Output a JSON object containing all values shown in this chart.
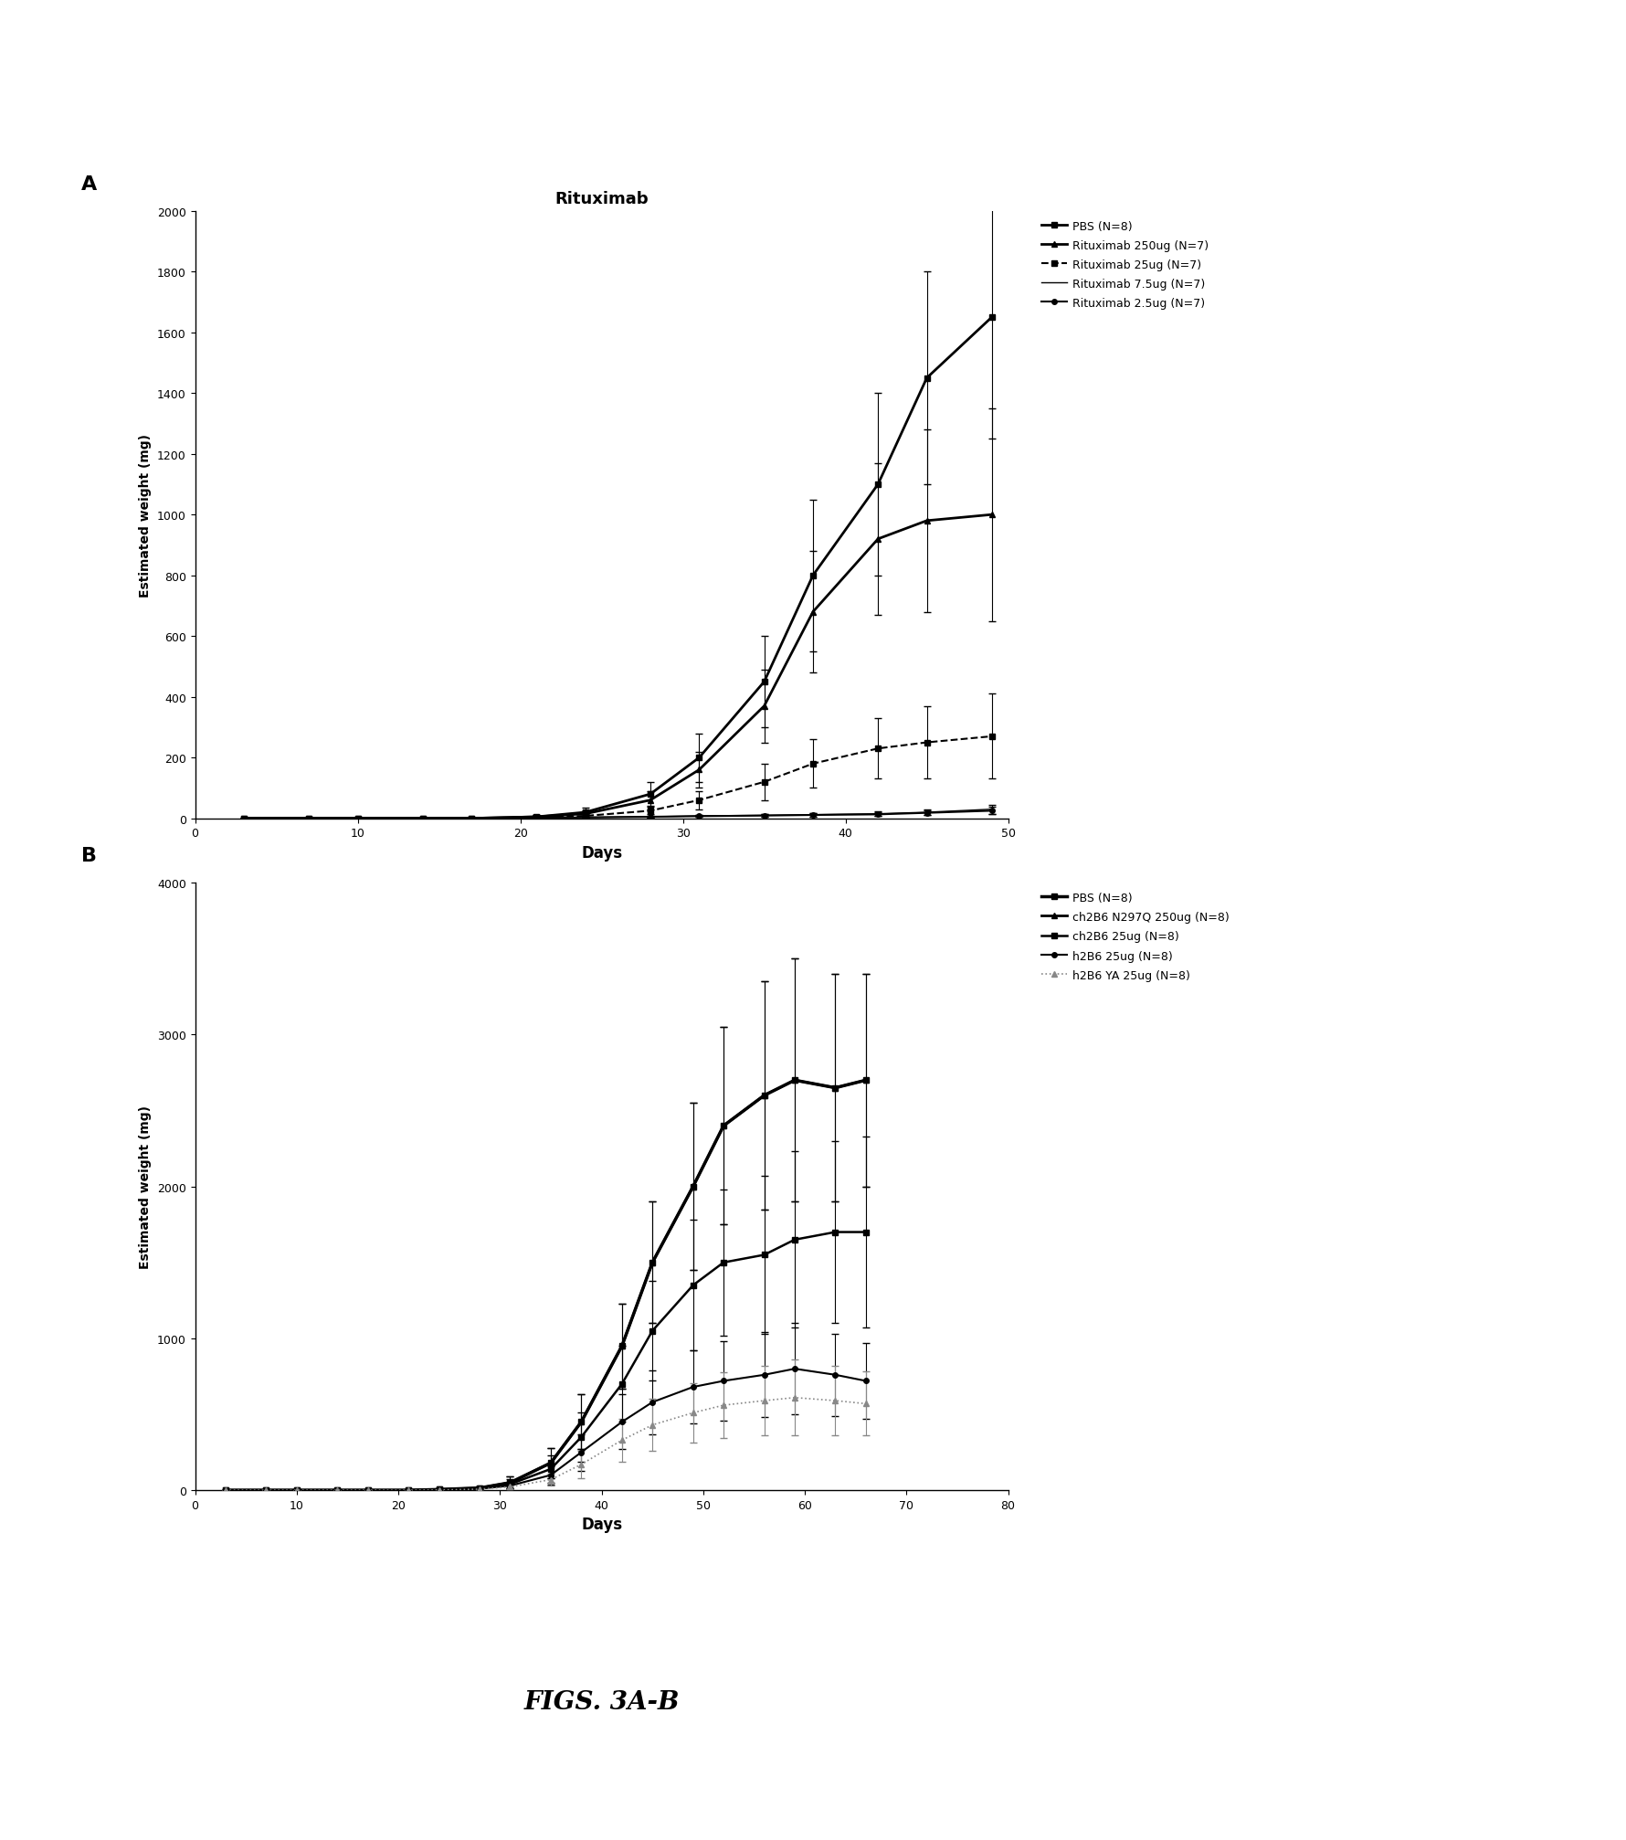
{
  "panel_A": {
    "title": "Rituximab",
    "xlabel": "Days",
    "ylabel": "Estimated weight (mg)",
    "xlim": [
      0,
      50
    ],
    "ylim": [
      0,
      2000
    ],
    "xticks": [
      0,
      10,
      20,
      30,
      40,
      50
    ],
    "yticks": [
      0,
      200,
      400,
      600,
      800,
      1000,
      1200,
      1400,
      1600,
      1800,
      2000
    ],
    "series": [
      {
        "label": "PBS (N=8)",
        "x": [
          3,
          7,
          10,
          14,
          17,
          21,
          24,
          28,
          31,
          35,
          38,
          42,
          45,
          49
        ],
        "y": [
          0,
          0,
          0,
          0,
          0,
          5,
          20,
          80,
          200,
          450,
          800,
          1100,
          1450,
          1650
        ],
        "yerr": [
          0,
          0,
          0,
          0,
          0,
          5,
          15,
          40,
          80,
          150,
          250,
          300,
          350,
          400
        ],
        "color": "#000000",
        "marker": "s",
        "linestyle": "-",
        "linewidth": 2.0,
        "markersize": 5
      },
      {
        "label": "Rituximab 250ug (N=7)",
        "x": [
          3,
          7,
          10,
          14,
          17,
          21,
          24,
          28,
          31,
          35,
          38,
          42,
          45,
          49
        ],
        "y": [
          0,
          0,
          0,
          0,
          0,
          5,
          15,
          60,
          160,
          370,
          680,
          920,
          980,
          1000
        ],
        "yerr": [
          0,
          0,
          0,
          0,
          0,
          5,
          10,
          30,
          60,
          120,
          200,
          250,
          300,
          350
        ],
        "color": "#000000",
        "marker": "^",
        "linestyle": "-",
        "linewidth": 2.0,
        "markersize": 5
      },
      {
        "label": "Rituximab 25ug (N=7)",
        "x": [
          3,
          7,
          10,
          14,
          17,
          21,
          24,
          28,
          31,
          35,
          38,
          42,
          45,
          49
        ],
        "y": [
          0,
          0,
          0,
          0,
          0,
          3,
          8,
          25,
          60,
          120,
          180,
          230,
          250,
          270
        ],
        "yerr": [
          0,
          0,
          0,
          0,
          0,
          2,
          5,
          12,
          30,
          60,
          80,
          100,
          120,
          140
        ],
        "color": "#000000",
        "marker": "s",
        "linestyle": "--",
        "linewidth": 1.5,
        "markersize": 4
      },
      {
        "label": "Rituximab 7.5ug (N=7)",
        "x": [
          3,
          7,
          10,
          14,
          17,
          21,
          24,
          28,
          31,
          35,
          38,
          42,
          45,
          49
        ],
        "y": [
          0,
          0,
          0,
          0,
          0,
          2,
          3,
          5,
          8,
          10,
          12,
          15,
          20,
          30
        ],
        "yerr": [
          0,
          0,
          0,
          0,
          0,
          1,
          2,
          3,
          4,
          5,
          6,
          7,
          10,
          15
        ],
        "color": "#000000",
        "marker": "None",
        "linestyle": "-",
        "linewidth": 1.0,
        "markersize": 3
      },
      {
        "label": "Rituximab 2.5ug (N=7)",
        "x": [
          3,
          7,
          10,
          14,
          17,
          21,
          24,
          28,
          31,
          35,
          38,
          42,
          45,
          49
        ],
        "y": [
          0,
          0,
          0,
          0,
          0,
          2,
          3,
          5,
          7,
          9,
          11,
          13,
          18,
          25
        ],
        "yerr": [
          0,
          0,
          0,
          0,
          0,
          1,
          2,
          2,
          3,
          4,
          5,
          6,
          8,
          12
        ],
        "color": "#000000",
        "marker": "o",
        "linestyle": "-",
        "linewidth": 1.5,
        "markersize": 4
      }
    ]
  },
  "panel_B": {
    "title": "",
    "xlabel": "Days",
    "ylabel": "Estimated weight (mg)",
    "xlim": [
      0,
      80
    ],
    "ylim": [
      0,
      4000
    ],
    "xticks": [
      0,
      10,
      20,
      30,
      40,
      50,
      60,
      70,
      80
    ],
    "yticks": [
      0,
      1000,
      2000,
      3000,
      4000
    ],
    "series": [
      {
        "label": "PBS (N=8)",
        "x": [
          3,
          7,
          10,
          14,
          17,
          21,
          24,
          28,
          31,
          35,
          38,
          42,
          45,
          49,
          52,
          56,
          59,
          63,
          66
        ],
        "y": [
          0,
          0,
          0,
          0,
          0,
          0,
          5,
          15,
          50,
          180,
          450,
          950,
          1500,
          2000,
          2400,
          2600,
          2700,
          2650,
          2700
        ],
        "yerr": [
          0,
          0,
          0,
          0,
          0,
          0,
          5,
          10,
          40,
          100,
          180,
          280,
          400,
          550,
          650,
          750,
          800,
          750,
          700
        ],
        "color": "#000000",
        "marker": "s",
        "linestyle": "-",
        "linewidth": 2.5,
        "markersize": 5
      },
      {
        "label": "ch2B6 N297Q 250ug (N=8)",
        "x": [
          3,
          7,
          10,
          14,
          17,
          21,
          24,
          28,
          31,
          35,
          38,
          42,
          45,
          49,
          52,
          56,
          59,
          63,
          66
        ],
        "y": [
          0,
          0,
          0,
          0,
          0,
          0,
          5,
          15,
          50,
          180,
          450,
          950,
          1500,
          2000,
          2400,
          2600,
          2700,
          2650,
          2700
        ],
        "yerr": [
          0,
          0,
          0,
          0,
          0,
          0,
          5,
          10,
          40,
          100,
          180,
          280,
          400,
          550,
          650,
          750,
          800,
          750,
          700
        ],
        "color": "#000000",
        "marker": "^",
        "linestyle": "-",
        "linewidth": 2.0,
        "markersize": 5
      },
      {
        "label": "ch2B6 25ug (N=8)",
        "x": [
          3,
          7,
          10,
          14,
          17,
          21,
          24,
          28,
          31,
          35,
          38,
          42,
          45,
          49,
          52,
          56,
          59,
          63,
          66
        ],
        "y": [
          0,
          0,
          0,
          0,
          0,
          0,
          4,
          12,
          40,
          140,
          350,
          700,
          1050,
          1350,
          1500,
          1550,
          1650,
          1700,
          1700
        ],
        "yerr": [
          0,
          0,
          0,
          0,
          0,
          0,
          4,
          10,
          35,
          90,
          160,
          250,
          330,
          430,
          480,
          520,
          580,
          600,
          630
        ],
        "color": "#000000",
        "marker": "s",
        "linestyle": "-",
        "linewidth": 1.8,
        "markersize": 4
      },
      {
        "label": "h2B6 25ug (N=8)",
        "x": [
          3,
          7,
          10,
          14,
          17,
          21,
          24,
          28,
          31,
          35,
          38,
          42,
          45,
          49,
          52,
          56,
          59,
          63,
          66
        ],
        "y": [
          0,
          0,
          0,
          0,
          0,
          0,
          3,
          10,
          30,
          100,
          250,
          450,
          580,
          680,
          720,
          760,
          800,
          760,
          720
        ],
        "yerr": [
          0,
          0,
          0,
          0,
          0,
          0,
          2,
          8,
          20,
          60,
          120,
          180,
          210,
          240,
          260,
          280,
          300,
          270,
          250
        ],
        "color": "#000000",
        "marker": "o",
        "linestyle": "-",
        "linewidth": 1.5,
        "markersize": 4
      },
      {
        "label": "h2B6 YA 25ug (N=8)",
        "x": [
          3,
          7,
          10,
          14,
          17,
          21,
          24,
          28,
          31,
          35,
          38,
          42,
          45,
          49,
          52,
          56,
          59,
          63,
          66
        ],
        "y": [
          0,
          0,
          0,
          0,
          0,
          0,
          2,
          7,
          22,
          70,
          170,
          330,
          430,
          510,
          560,
          590,
          610,
          590,
          570
        ],
        "yerr": [
          0,
          0,
          0,
          0,
          0,
          0,
          2,
          5,
          15,
          40,
          90,
          140,
          170,
          195,
          215,
          230,
          250,
          230,
          210
        ],
        "color": "#888888",
        "marker": "^",
        "linestyle": ":",
        "linewidth": 1.2,
        "markersize": 4
      }
    ]
  },
  "figure_label": "FIGS. 3A-B",
  "bg_color": "#ffffff",
  "text_color": "#000000"
}
